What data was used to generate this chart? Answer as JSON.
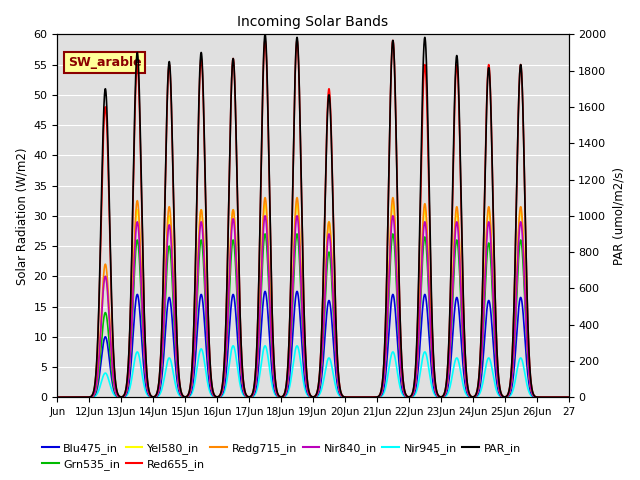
{
  "title": "Incoming Solar Bands",
  "ylabel_left": "Solar Radiation (W/m2)",
  "ylabel_right": "PAR (umol/m2/s)",
  "xlim_days": [
    11,
    27
  ],
  "ylim_left": [
    0,
    60
  ],
  "ylim_right": [
    0,
    2000
  ],
  "yticks_left": [
    0,
    5,
    10,
    15,
    20,
    25,
    30,
    35,
    40,
    45,
    50,
    55,
    60
  ],
  "yticks_right": [
    0,
    200,
    400,
    600,
    800,
    1000,
    1200,
    1400,
    1600,
    1800,
    2000
  ],
  "xtick_labels": [
    "Jun",
    "12Jun",
    "13Jun",
    "14Jun",
    "15Jun",
    "16Jun",
    "17Jun",
    "18Jun",
    "19Jun",
    "20Jun",
    "21Jun",
    "22Jun",
    "23Jun",
    "24Jun",
    "25Jun",
    "26Jun",
    "27"
  ],
  "xtick_positions": [
    11,
    12,
    13,
    14,
    15,
    16,
    17,
    18,
    19,
    20,
    21,
    22,
    23,
    24,
    25,
    26,
    27
  ],
  "annotation_text": "SW_arable",
  "annotation_color": "#8B0000",
  "annotation_bg": "#FFFF99",
  "annotation_border": "#8B0000",
  "bg_color": "#E0E0E0",
  "series_colors": {
    "Blu475_in": "#0000DD",
    "Grn535_in": "#00BB00",
    "Yel580_in": "#FFFF00",
    "Red655_in": "#FF0000",
    "Redg715_in": "#FF8800",
    "Nir840_in": "#BB00BB",
    "Nir945_in": "#00FFFF",
    "PAR_in": "#000000"
  },
  "peaks": [
    12.5,
    13.5,
    14.5,
    15.5,
    16.5,
    17.5,
    18.5,
    19.5,
    21.5,
    22.5,
    23.5,
    24.5,
    25.5
  ],
  "peak_heights": {
    "Blu475_in": [
      10,
      17,
      16.5,
      17,
      17,
      17.5,
      17.5,
      16,
      17,
      17,
      16.5,
      16,
      16.5
    ],
    "Grn535_in": [
      14,
      26,
      25,
      26,
      26,
      27,
      27,
      24,
      27,
      26.5,
      26,
      25.5,
      26
    ],
    "Yel580_in": [
      20,
      31,
      30,
      31,
      31,
      32,
      32,
      29,
      32,
      31,
      30.5,
      31,
      31
    ],
    "Red655_in": [
      48,
      55,
      55,
      56,
      56,
      59,
      59,
      51,
      59,
      55,
      55,
      55,
      55
    ],
    "Redg715_in": [
      22,
      32.5,
      31.5,
      31,
      31,
      33,
      33,
      29,
      33,
      32,
      31.5,
      31.5,
      31.5
    ],
    "Nir840_in": [
      20,
      29,
      28.5,
      29,
      29.5,
      30,
      30,
      27,
      30,
      29,
      29,
      29,
      29
    ],
    "Nir945_in": [
      4,
      7.5,
      6.5,
      8,
      8.5,
      8.5,
      8.5,
      6.5,
      7.5,
      7.5,
      6.5,
      6.5,
      6.5
    ],
    "PAR_in": [
      51,
      57,
      55.5,
      57,
      56,
      60,
      59.5,
      50,
      59,
      59.5,
      56.5,
      54.5,
      55
    ]
  },
  "peak_sigma": 0.13,
  "legend_order": [
    "Blu475_in",
    "Grn535_in",
    "Yel580_in",
    "Red655_in",
    "Redg715_in",
    "Nir840_in",
    "Nir945_in",
    "PAR_in"
  ]
}
